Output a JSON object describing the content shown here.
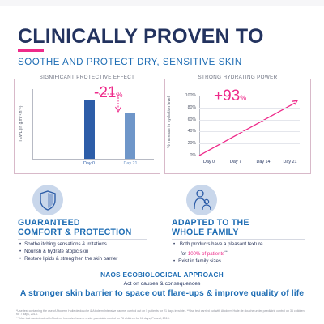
{
  "header": {
    "title": "CLINICALLY PROVEN TO",
    "subtitle": "SOOTHE AND PROTECT DRY, SENSITIVE SKIN"
  },
  "colors": {
    "navy": "#23335f",
    "blue": "#1e6db4",
    "pink": "#ee2a8a",
    "bar_dark": "#2d5da8",
    "bar_light": "#6f96c9"
  },
  "protective_panel": {
    "title": "SIGNIFICANT PROTECTIVE EFFECT",
    "ylabel": "TEWL (in g.m⁻².h⁻¹)",
    "change": "-21",
    "change_unit": "%",
    "categories": [
      "Day 0",
      "Day 21"
    ]
  },
  "hydration_panel": {
    "title": "STRONG HYDRATING POWER",
    "ylabel": "% increase in hydration level",
    "change": "+93",
    "change_unit": "%",
    "yticks": [
      "100%",
      "80%",
      "60%",
      "40%",
      "20%",
      "0%"
    ],
    "categories": [
      "Day 0",
      "Day 7",
      "Day 14",
      "Day 21"
    ]
  },
  "chart_data": [
    {
      "type": "bar",
      "title": "SIGNIFICANT PROTECTIVE EFFECT",
      "ylabel": "TEWL (in g.m⁻².h⁻¹)",
      "categories": [
        "Day 0",
        "Day 21"
      ],
      "values": [
        1.0,
        0.79
      ],
      "annotation": "-21%"
    },
    {
      "type": "line",
      "title": "STRONG HYDRATING POWER",
      "ylabel": "% increase in hydration level",
      "x": [
        "Day 0",
        "Day 21"
      ],
      "values": [
        0,
        93
      ],
      "ylim": [
        0,
        100
      ],
      "annotation": "+93%"
    }
  ],
  "left_section": {
    "icon": "shield-icon",
    "title_line1": "GUARANTEED",
    "title_line2": "COMFORT & PROTECTION",
    "bullets": [
      "Soothe itching sensations & irritations",
      "Nourish & hydrate atopic skin",
      "Restore lipids & strengthen the skin barrier"
    ]
  },
  "right_section": {
    "icon": "parent-child-icon",
    "title_line1": "ADAPTED TO THE",
    "title_line2": "WHOLE FAMILY",
    "bullet1_part1": "Both products have a pleasant texture",
    "bullet1_part2_prefix": "for ",
    "bullet1_highlight": "100% of patients",
    "bullet1_suffix": "***",
    "bullet2": "Exist in family sizes"
  },
  "naos": {
    "title": "NAOS ECOBIOLOGICAL APPROACH",
    "subtitle": "Act on causes & consequences",
    "tagline": "A stronger skin barrier to space out flare-ups & improve quality of life"
  },
  "footnotes": [
    "*Use test containing the use of Atoderm Huile de douche & Atoderm Intensive baume, carried out on 5 patients for 21 days in winter. **Use test carried out with Atoderm Huile de douche under paediatric control on 36 children for 7 days, 2014.",
    "***Use test carried out with Atoderm Intensive baume under paediatric control on 76 children for 16 days, Poland, 2013."
  ]
}
